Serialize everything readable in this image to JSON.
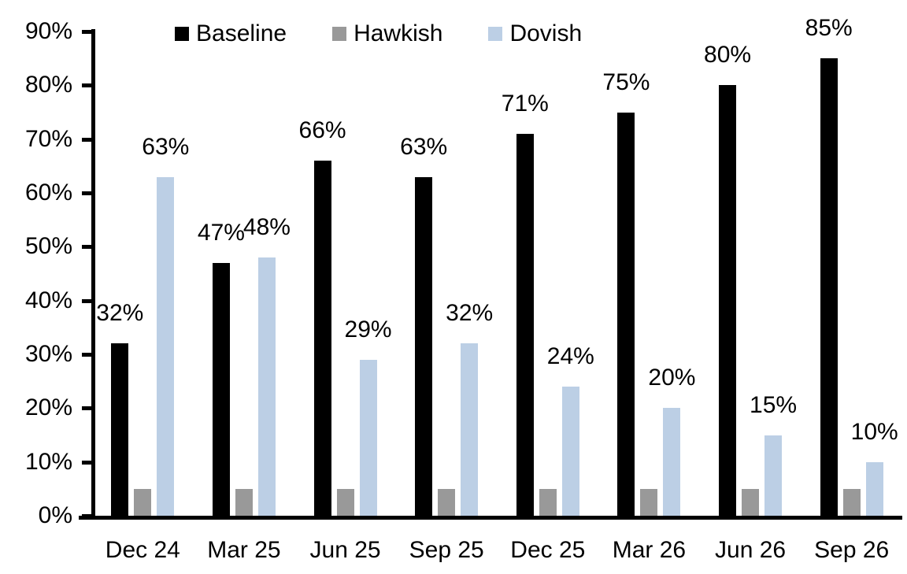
{
  "chart_data": {
    "type": "bar",
    "title": "",
    "xlabel": "",
    "ylabel": "",
    "categories": [
      "Dec 24",
      "Mar 25",
      "Jun 25",
      "Sep 25",
      "Dec 25",
      "Mar 26",
      "Jun 26",
      "Sep 26"
    ],
    "series": [
      {
        "name": "Baseline",
        "color": "#000000",
        "values": [
          32,
          47,
          66,
          63,
          71,
          75,
          80,
          85
        ],
        "labels": [
          "32%",
          "47%",
          "66%",
          "63%",
          "71%",
          "75%",
          "80%",
          "85%"
        ],
        "show_labels": true
      },
      {
        "name": "Hawkish",
        "color": "#999999",
        "values": [
          5,
          5,
          5,
          5,
          5,
          5,
          5,
          5
        ],
        "labels": [],
        "show_labels": false
      },
      {
        "name": "Dovish",
        "color": "#BCCFE5",
        "values": [
          63,
          48,
          29,
          32,
          24,
          20,
          15,
          10
        ],
        "labels": [
          "63%",
          "48%",
          "29%",
          "32%",
          "24%",
          "20%",
          "15%",
          "10%"
        ],
        "show_labels": true
      }
    ],
    "ylim": [
      0,
      90
    ],
    "yticks": [
      0,
      10,
      20,
      30,
      40,
      50,
      60,
      70,
      80,
      90
    ],
    "ytick_labels": [
      "0%",
      "10%",
      "20%",
      "30%",
      "40%",
      "50%",
      "60%",
      "70%",
      "80%",
      "90%"
    ],
    "legend_position": "top",
    "legend_entries": [
      "Baseline",
      "Hawkish",
      "Dovish"
    ],
    "grid": false,
    "axis_color": "#000000"
  }
}
